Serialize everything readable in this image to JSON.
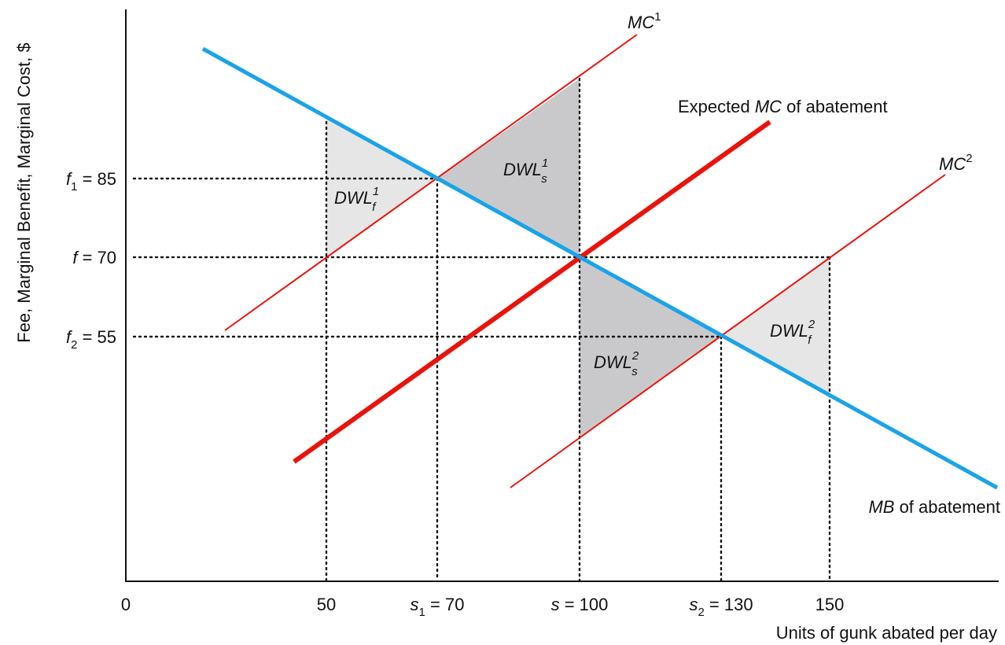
{
  "colors": {
    "mb_line": "#1aa3e8",
    "mc_line": "#e8140c",
    "dwl_light": "#e6e6e6",
    "dwl_dark": "#c9c9cc",
    "axis": "#111111"
  },
  "axes": {
    "y_label": "Fee, Marginal Benefit, Marginal Cost, $",
    "x_label": "Units of gunk abated per day",
    "origin_label": "0"
  },
  "y_ticks": [
    {
      "var": "f",
      "sub": "1",
      "rest": " = 85"
    },
    {
      "var": "f",
      "sub": "",
      "rest": " = 70"
    },
    {
      "var": "f",
      "sub": "2",
      "rest": " = 55"
    }
  ],
  "x_ticks": [
    {
      "var": "",
      "sub": "",
      "rest": "50"
    },
    {
      "var": "s",
      "sub": "1",
      "rest": " = 70"
    },
    {
      "var": "s",
      "sub": "",
      "rest": " = 100"
    },
    {
      "var": "s",
      "sub": "2",
      "rest": " = 130"
    },
    {
      "var": "",
      "sub": "",
      "rest": "150"
    }
  ],
  "curves": {
    "mc1": {
      "base": "MC",
      "sup": "1"
    },
    "mc2": {
      "base": "MC",
      "sup": "2"
    },
    "expected": {
      "prefix": "Expected ",
      "base": "MC",
      "suffix": " of abatement"
    },
    "mb": {
      "base": "MB",
      "suffix": " of abatement"
    }
  },
  "regions": [
    {
      "base": "DWL",
      "sup": "1",
      "sub": "f"
    },
    {
      "base": "DWL",
      "sup": "1",
      "sub": "s"
    },
    {
      "base": "DWL",
      "sup": "2",
      "sub": "s"
    },
    {
      "base": "DWL",
      "sup": "2",
      "sub": "f"
    }
  ]
}
